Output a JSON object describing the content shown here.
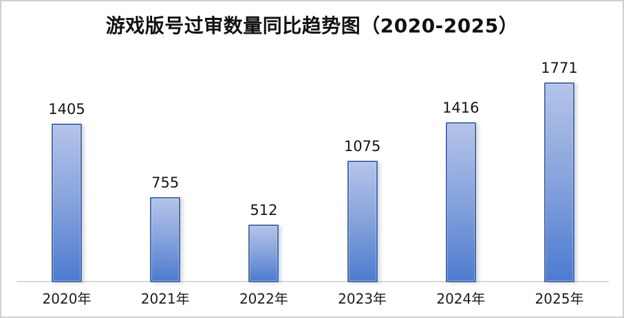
{
  "chart_data": {
    "type": "bar",
    "title": "游戏版号过审数量同比趋势图（2020-2025）",
    "categories": [
      "2020年",
      "2021年",
      "2022年",
      "2023年",
      "2024年",
      "2025年"
    ],
    "values": [
      1405,
      755,
      512,
      1075,
      1416,
      1771
    ],
    "xlabel": "",
    "ylabel": "",
    "ylim": [
      0,
      1900
    ],
    "grid": false,
    "legend": null,
    "value_labels_shown": true,
    "colors": {
      "bar_fill_top": "#b4c4e9",
      "bar_fill_mid": "#8aa6dd",
      "bar_fill_bottom": "#4d7bd0",
      "bar_border": "#4a6da8",
      "axis_line": "#d9d9d9",
      "title_text": "#111111",
      "label_text": "#161616"
    }
  }
}
